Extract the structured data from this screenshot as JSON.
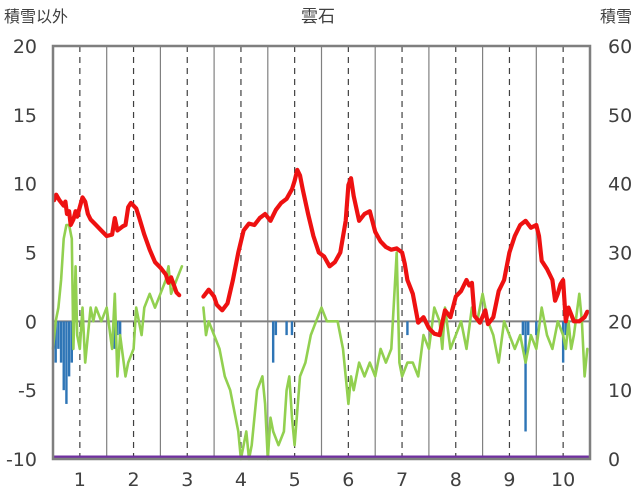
{
  "chart_data": {
    "type": "line",
    "title": "雲石",
    "ylabel_left": "積雪以外",
    "ylabel_right": "積雪",
    "xlim": [
      0.5,
      10.5
    ],
    "ylim_left": [
      -10,
      20
    ],
    "ylim_right": [
      0,
      60
    ],
    "x_ticks": [
      "1",
      "2",
      "3",
      "4",
      "5",
      "6",
      "7",
      "8",
      "9",
      "10"
    ],
    "y_ticks_left": [
      "20",
      "15",
      "10",
      "5",
      "0",
      "-5",
      "-10"
    ],
    "y_ticks_right": [
      "60",
      "50",
      "40",
      "30",
      "20",
      "10",
      "0"
    ],
    "grid": "vertical dashed at integers, solid at half",
    "colors": {
      "temperature": "#ee1111",
      "green_series": "#92d050",
      "bars": "#2e75b6",
      "snow": "#7030a0",
      "frame": "#7f7f7f"
    },
    "series": [
      {
        "style": "red-thick-line",
        "segments": [
          [
            [
              0.52,
              8.8
            ],
            [
              0.56,
              9.2
            ],
            [
              0.62,
              8.8
            ],
            [
              0.7,
              8.4
            ],
            [
              0.73,
              8.7
            ],
            [
              0.76,
              7.8
            ],
            [
              0.8,
              8.0
            ],
            [
              0.83,
              7.0
            ],
            [
              0.88,
              7.4
            ],
            [
              0.92,
              8.0
            ],
            [
              0.95,
              7.6
            ],
            [
              1.0,
              8.3
            ],
            [
              1.05,
              9.0
            ],
            [
              1.1,
              8.7
            ],
            [
              1.15,
              7.8
            ],
            [
              1.2,
              7.4
            ],
            [
              1.3,
              7.0
            ],
            [
              1.4,
              6.6
            ],
            [
              1.5,
              6.2
            ],
            [
              1.6,
              6.3
            ],
            [
              1.65,
              7.5
            ],
            [
              1.7,
              6.6
            ],
            [
              1.8,
              6.9
            ],
            [
              1.85,
              7.0
            ],
            [
              1.9,
              8.3
            ],
            [
              1.95,
              8.6
            ],
            [
              2.05,
              8.2
            ],
            [
              2.1,
              7.6
            ],
            [
              2.2,
              6.3
            ],
            [
              2.3,
              5.2
            ],
            [
              2.4,
              4.3
            ],
            [
              2.5,
              3.9
            ],
            [
              2.6,
              3.4
            ],
            [
              2.65,
              2.8
            ],
            [
              2.7,
              3.2
            ],
            [
              2.8,
              2.1
            ],
            [
              2.85,
              1.9
            ]
          ],
          [
            [
              3.3,
              1.8
            ],
            [
              3.4,
              2.3
            ],
            [
              3.5,
              1.8
            ],
            [
              3.55,
              1.2
            ],
            [
              3.65,
              0.8
            ],
            [
              3.75,
              1.3
            ],
            [
              3.85,
              3.0
            ],
            [
              3.95,
              5.0
            ],
            [
              4.05,
              6.6
            ],
            [
              4.15,
              7.1
            ],
            [
              4.25,
              7.0
            ],
            [
              4.35,
              7.5
            ],
            [
              4.45,
              7.8
            ],
            [
              4.55,
              7.3
            ],
            [
              4.65,
              8.1
            ],
            [
              4.75,
              8.6
            ],
            [
              4.85,
              8.9
            ],
            [
              4.95,
              9.6
            ],
            [
              5.0,
              10.2
            ],
            [
              5.05,
              11.0
            ],
            [
              5.1,
              10.6
            ],
            [
              5.15,
              9.6
            ],
            [
              5.25,
              7.8
            ],
            [
              5.35,
              6.2
            ],
            [
              5.45,
              5.0
            ],
            [
              5.55,
              4.7
            ],
            [
              5.65,
              4.0
            ],
            [
              5.75,
              4.3
            ],
            [
              5.85,
              5.0
            ],
            [
              5.95,
              7.3
            ],
            [
              6.0,
              9.9
            ],
            [
              6.05,
              10.4
            ],
            [
              6.1,
              9.1
            ],
            [
              6.2,
              7.3
            ],
            [
              6.3,
              7.8
            ],
            [
              6.4,
              8.0
            ],
            [
              6.5,
              6.5
            ],
            [
              6.6,
              5.8
            ],
            [
              6.7,
              5.4
            ],
            [
              6.8,
              5.2
            ],
            [
              6.9,
              5.3
            ],
            [
              7.0,
              5.0
            ],
            [
              7.05,
              4.2
            ],
            [
              7.1,
              3.0
            ],
            [
              7.2,
              2.0
            ],
            [
              7.3,
              -0.1
            ],
            [
              7.4,
              0.3
            ],
            [
              7.5,
              -0.5
            ],
            [
              7.6,
              -0.9
            ],
            [
              7.7,
              -1.0
            ],
            [
              7.8,
              0.8
            ],
            [
              7.9,
              0.3
            ],
            [
              8.0,
              1.8
            ],
            [
              8.1,
              2.2
            ],
            [
              8.2,
              3.0
            ],
            [
              8.25,
              2.6
            ],
            [
              8.3,
              2.8
            ],
            [
              8.35,
              0.4
            ],
            [
              8.45,
              -0.1
            ],
            [
              8.55,
              0.8
            ],
            [
              8.6,
              -0.2
            ],
            [
              8.7,
              0.3
            ],
            [
              8.8,
              2.2
            ],
            [
              8.9,
              3.0
            ],
            [
              9.0,
              5.0
            ],
            [
              9.1,
              6.2
            ],
            [
              9.2,
              7.0
            ],
            [
              9.3,
              7.3
            ],
            [
              9.4,
              6.8
            ],
            [
              9.5,
              7.0
            ],
            [
              9.55,
              6.2
            ],
            [
              9.6,
              4.4
            ],
            [
              9.7,
              3.8
            ],
            [
              9.8,
              3.0
            ],
            [
              9.85,
              1.5
            ],
            [
              9.9,
              2.0
            ],
            [
              9.95,
              2.7
            ],
            [
              10.0,
              3.0
            ],
            [
              10.05,
              0.0
            ],
            [
              10.1,
              1.0
            ],
            [
              10.2,
              0.0
            ],
            [
              10.3,
              0.0
            ],
            [
              10.4,
              0.3
            ],
            [
              10.45,
              0.7
            ]
          ]
        ]
      },
      {
        "style": "green-line",
        "segments": [
          [
            [
              0.5,
              -2.0
            ],
            [
              0.55,
              0.0
            ],
            [
              0.6,
              1.0
            ],
            [
              0.65,
              3.0
            ],
            [
              0.7,
              6.0
            ],
            [
              0.75,
              7.0
            ],
            [
              0.8,
              7.0
            ],
            [
              0.85,
              6.0
            ],
            [
              0.88,
              -2.0
            ],
            [
              0.92,
              4.0
            ],
            [
              0.95,
              -1.0
            ],
            [
              1.0,
              -2.0
            ],
            [
              1.05,
              1.0
            ],
            [
              1.1,
              -3.0
            ],
            [
              1.15,
              -1.0
            ],
            [
              1.2,
              1.0
            ],
            [
              1.25,
              0.0
            ],
            [
              1.3,
              1.0
            ],
            [
              1.4,
              0.0
            ],
            [
              1.5,
              1.0
            ],
            [
              1.6,
              -2.0
            ],
            [
              1.65,
              2.0
            ],
            [
              1.7,
              -4.0
            ],
            [
              1.75,
              -1.0
            ],
            [
              1.85,
              -4.0
            ],
            [
              1.9,
              -3.0
            ],
            [
              2.0,
              -2.0
            ],
            [
              2.05,
              1.0
            ],
            [
              2.1,
              0.0
            ],
            [
              2.15,
              -1.0
            ],
            [
              2.2,
              1.0
            ],
            [
              2.3,
              2.0
            ],
            [
              2.4,
              1.0
            ],
            [
              2.5,
              2.0
            ],
            [
              2.6,
              3.0
            ],
            [
              2.65,
              4.0
            ],
            [
              2.7,
              2.0
            ],
            [
              2.8,
              3.0
            ],
            [
              2.9,
              4.0
            ]
          ],
          [
            [
              3.3,
              1.0
            ],
            [
              3.35,
              -1.0
            ],
            [
              3.4,
              0.0
            ],
            [
              3.5,
              -1.0
            ],
            [
              3.6,
              -2.0
            ],
            [
              3.7,
              -4.0
            ],
            [
              3.8,
              -5.0
            ],
            [
              3.9,
              -7.0
            ],
            [
              3.95,
              -8.0
            ],
            [
              4.0,
              -10.0
            ],
            [
              4.1,
              -8.0
            ],
            [
              4.15,
              -10.0
            ],
            [
              4.2,
              -9.0
            ],
            [
              4.3,
              -5.0
            ],
            [
              4.4,
              -4.0
            ],
            [
              4.45,
              -6.0
            ],
            [
              4.5,
              -10.0
            ],
            [
              4.55,
              -7.0
            ],
            [
              4.6,
              -8.0
            ],
            [
              4.7,
              -9.0
            ],
            [
              4.8,
              -8.0
            ],
            [
              4.85,
              -5.0
            ],
            [
              4.9,
              -4.0
            ],
            [
              4.95,
              -7.0
            ],
            [
              5.0,
              -9.0
            ],
            [
              5.1,
              -4.0
            ],
            [
              5.2,
              -3.0
            ],
            [
              5.3,
              -1.0
            ],
            [
              5.4,
              0.0
            ],
            [
              5.5,
              1.0
            ],
            [
              5.6,
              0.0
            ],
            [
              5.7,
              0.0
            ],
            [
              5.8,
              0.0
            ],
            [
              5.85,
              -1.0
            ],
            [
              5.9,
              -2.0
            ],
            [
              5.95,
              -4.0
            ],
            [
              6.0,
              -6.0
            ],
            [
              6.05,
              -4.0
            ],
            [
              6.1,
              -5.0
            ],
            [
              6.2,
              -3.0
            ],
            [
              6.3,
              -4.0
            ],
            [
              6.4,
              -3.0
            ],
            [
              6.5,
              -4.0
            ],
            [
              6.6,
              -2.0
            ],
            [
              6.7,
              -3.0
            ],
            [
              6.8,
              -2.0
            ],
            [
              6.9,
              5.0
            ],
            [
              6.95,
              -3.0
            ],
            [
              7.0,
              -4.0
            ],
            [
              7.1,
              -3.0
            ],
            [
              7.2,
              -3.0
            ],
            [
              7.3,
              -4.0
            ],
            [
              7.4,
              -1.0
            ],
            [
              7.5,
              -2.0
            ],
            [
              7.6,
              1.0
            ],
            [
              7.7,
              0.0
            ],
            [
              7.75,
              -2.0
            ],
            [
              7.8,
              1.0
            ],
            [
              7.9,
              -2.0
            ],
            [
              8.0,
              -1.0
            ],
            [
              8.1,
              0.0
            ],
            [
              8.2,
              -2.0
            ],
            [
              8.3,
              1.0
            ],
            [
              8.4,
              0.0
            ],
            [
              8.5,
              2.0
            ],
            [
              8.55,
              1.0
            ],
            [
              8.6,
              0.0
            ],
            [
              8.7,
              -1.0
            ],
            [
              8.8,
              -3.0
            ],
            [
              8.9,
              0.0
            ],
            [
              9.0,
              -1.0
            ],
            [
              9.1,
              -2.0
            ],
            [
              9.2,
              -1.0
            ],
            [
              9.3,
              -3.0
            ],
            [
              9.4,
              -1.0
            ],
            [
              9.5,
              -2.0
            ],
            [
              9.6,
              1.0
            ],
            [
              9.7,
              -1.0
            ],
            [
              9.8,
              -2.0
            ],
            [
              9.9,
              0.0
            ],
            [
              10.0,
              -1.0
            ],
            [
              10.05,
              -2.0
            ],
            [
              10.1,
              0.0
            ],
            [
              10.15,
              -2.0
            ],
            [
              10.2,
              -1.0
            ],
            [
              10.3,
              2.0
            ],
            [
              10.35,
              0.0
            ],
            [
              10.4,
              -4.0
            ],
            [
              10.45,
              -2.0
            ]
          ]
        ]
      },
      {
        "style": "blue-bars",
        "points": [
          [
            0.55,
            -3
          ],
          [
            0.6,
            -2
          ],
          [
            0.65,
            -3
          ],
          [
            0.7,
            -5
          ],
          [
            0.75,
            -6
          ],
          [
            0.8,
            -4
          ],
          [
            0.85,
            -3
          ],
          [
            1.65,
            -2
          ],
          [
            1.7,
            -1
          ],
          [
            1.75,
            -2
          ],
          [
            4.6,
            -3
          ],
          [
            4.65,
            -1
          ],
          [
            4.85,
            -1
          ],
          [
            4.95,
            -1
          ],
          [
            7.1,
            -1
          ],
          [
            9.25,
            -1
          ],
          [
            9.3,
            -8
          ],
          [
            9.35,
            -1
          ],
          [
            9.5,
            -1
          ],
          [
            10.0,
            -3
          ],
          [
            10.05,
            -1
          ]
        ]
      },
      {
        "style": "snow-line",
        "axis": "right",
        "points": [
          [
            0.5,
            0
          ],
          [
            10.5,
            0
          ]
        ]
      }
    ]
  }
}
